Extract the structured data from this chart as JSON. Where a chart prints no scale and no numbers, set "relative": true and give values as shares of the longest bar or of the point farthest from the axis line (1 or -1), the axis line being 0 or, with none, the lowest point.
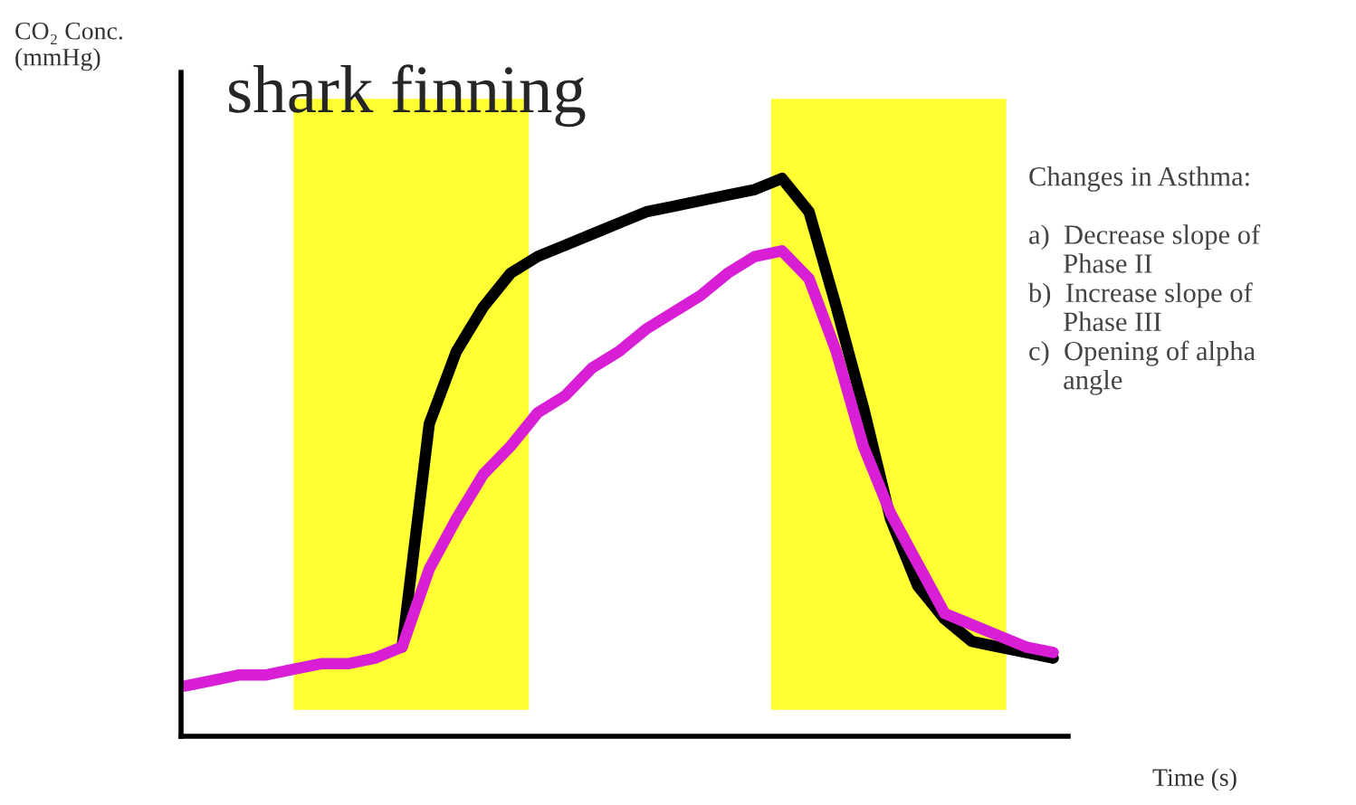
{
  "chart_data": {
    "type": "line",
    "relative": true,
    "title": "shark finning",
    "ylabel": "CO₂ Conc.\n(mmHg)",
    "xlabel": "Time (s)",
    "categories": [
      null,
      null,
      null,
      null,
      null,
      null,
      null,
      null,
      null,
      null,
      null,
      null,
      null,
      null,
      null,
      null,
      null,
      null,
      null,
      null,
      null,
      null,
      null,
      null,
      null,
      null,
      null,
      null,
      null,
      null,
      null,
      null,
      null
    ],
    "series": [
      {
        "color": "#000000",
        "values": [
          null,
          null,
          null,
          null,
          null,
          null,
          null,
          null,
          0.16,
          0.56,
          0.69,
          0.77,
          0.83,
          0.86,
          0.88,
          0.9,
          0.92,
          0.94,
          0.95,
          0.96,
          0.97,
          0.98,
          1.0,
          0.94,
          0.77,
          0.59,
          0.39,
          0.27,
          0.21,
          0.17,
          0.16,
          0.15,
          0.14
        ]
      },
      {
        "color": "#d81fd6",
        "values": [
          0.09,
          0.1,
          0.11,
          0.11,
          0.12,
          0.13,
          0.13,
          0.14,
          0.16,
          0.3,
          0.39,
          0.47,
          0.52,
          0.58,
          0.61,
          0.66,
          0.69,
          0.73,
          0.76,
          0.79,
          0.83,
          0.86,
          0.87,
          0.82,
          0.69,
          0.52,
          0.4,
          0.31,
          0.22,
          0.2,
          0.18,
          0.16,
          0.15
        ]
      }
    ],
    "annotations": [
      "Changes in Asthma:\n\na)  Decrease slope of\n     Phase II\nb)  Increase slope of\n     Phase III\nc)  Opening of alpha\n     angle"
    ],
    "legend": false
  }
}
